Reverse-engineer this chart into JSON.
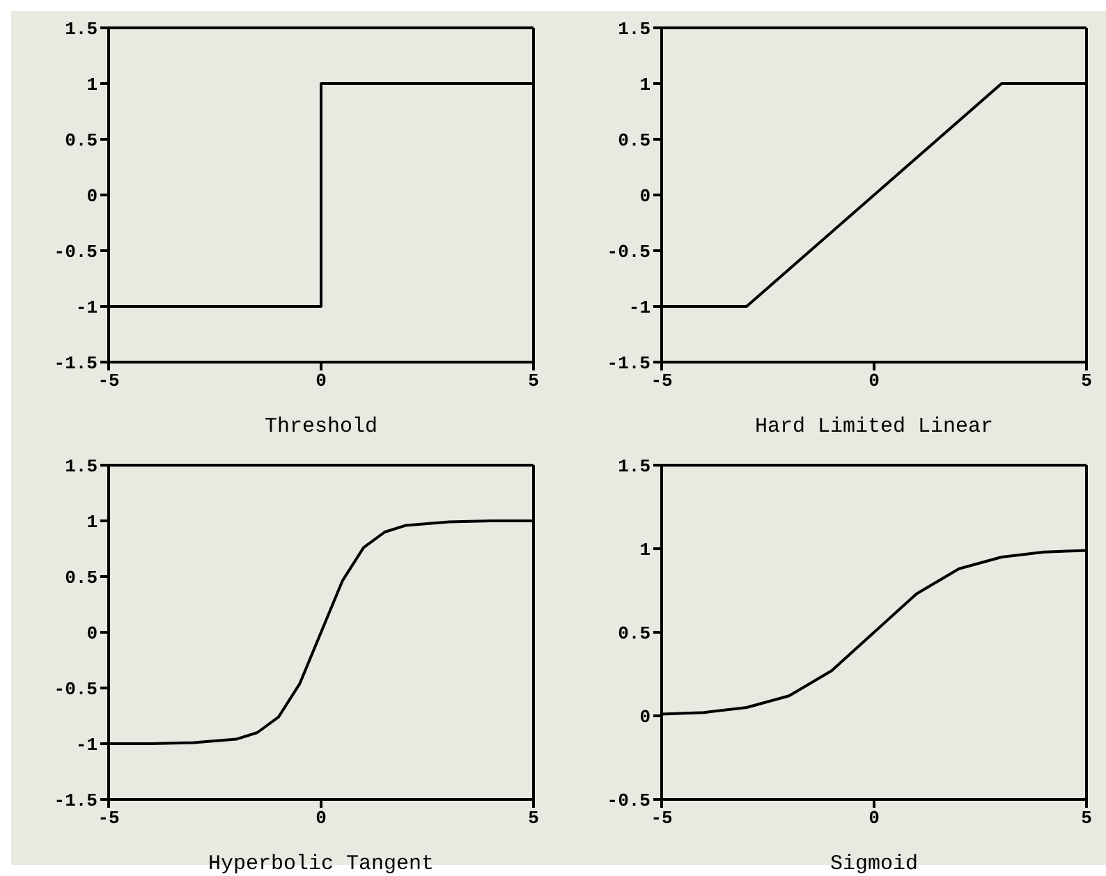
{
  "chart_data": [
    {
      "type": "line",
      "xlabel": "Threshold",
      "x": [
        -5,
        0,
        0,
        5
      ],
      "values": [
        -1,
        -1,
        1,
        1
      ],
      "color": "#000000",
      "xlim": [
        -5,
        5
      ],
      "xticks": [
        -5,
        0,
        5
      ],
      "ylim": [
        -1.5,
        1.5
      ],
      "yticks": [
        -1.5,
        -1,
        -0.5,
        0,
        0.5,
        1,
        1.5
      ]
    },
    {
      "type": "line",
      "xlabel": "Hard Limited Linear",
      "x": [
        -5,
        -3,
        3,
        5
      ],
      "values": [
        -1,
        -1,
        1,
        1
      ],
      "color": "#000000",
      "xlim": [
        -5,
        5
      ],
      "xticks": [
        -5,
        0,
        5
      ],
      "ylim": [
        -1.5,
        1.5
      ],
      "yticks": [
        -1.5,
        -1,
        -0.5,
        0,
        0.5,
        1,
        1.5
      ]
    },
    {
      "type": "line",
      "xlabel": "Hyperbolic Tangent",
      "x": [
        -5,
        -4,
        -3,
        -2,
        -1.5,
        -1,
        -0.5,
        0,
        0.5,
        1,
        1.5,
        2,
        3,
        4,
        5
      ],
      "values": [
        -1,
        -1,
        -0.99,
        -0.96,
        -0.9,
        -0.76,
        -0.46,
        0,
        0.46,
        0.76,
        0.9,
        0.96,
        0.99,
        1,
        1
      ],
      "color": "#000000",
      "xlim": [
        -5,
        5
      ],
      "xticks": [
        -5,
        0,
        5
      ],
      "ylim": [
        -1.5,
        1.5
      ],
      "yticks": [
        -1.5,
        -1,
        -0.5,
        0,
        0.5,
        1,
        1.5
      ]
    },
    {
      "type": "line",
      "xlabel": "Sigmoid",
      "x": [
        -5,
        -4,
        -3,
        -2,
        -1,
        0,
        1,
        2,
        3,
        4,
        5
      ],
      "values": [
        0.01,
        0.02,
        0.05,
        0.12,
        0.27,
        0.5,
        0.73,
        0.88,
        0.95,
        0.98,
        0.99
      ],
      "color": "#000000",
      "xlim": [
        -5,
        5
      ],
      "xticks": [
        -5,
        0,
        5
      ],
      "ylim": [
        -0.5,
        1.5
      ],
      "yticks": [
        -0.5,
        0,
        0.5,
        1,
        1.5
      ]
    }
  ]
}
